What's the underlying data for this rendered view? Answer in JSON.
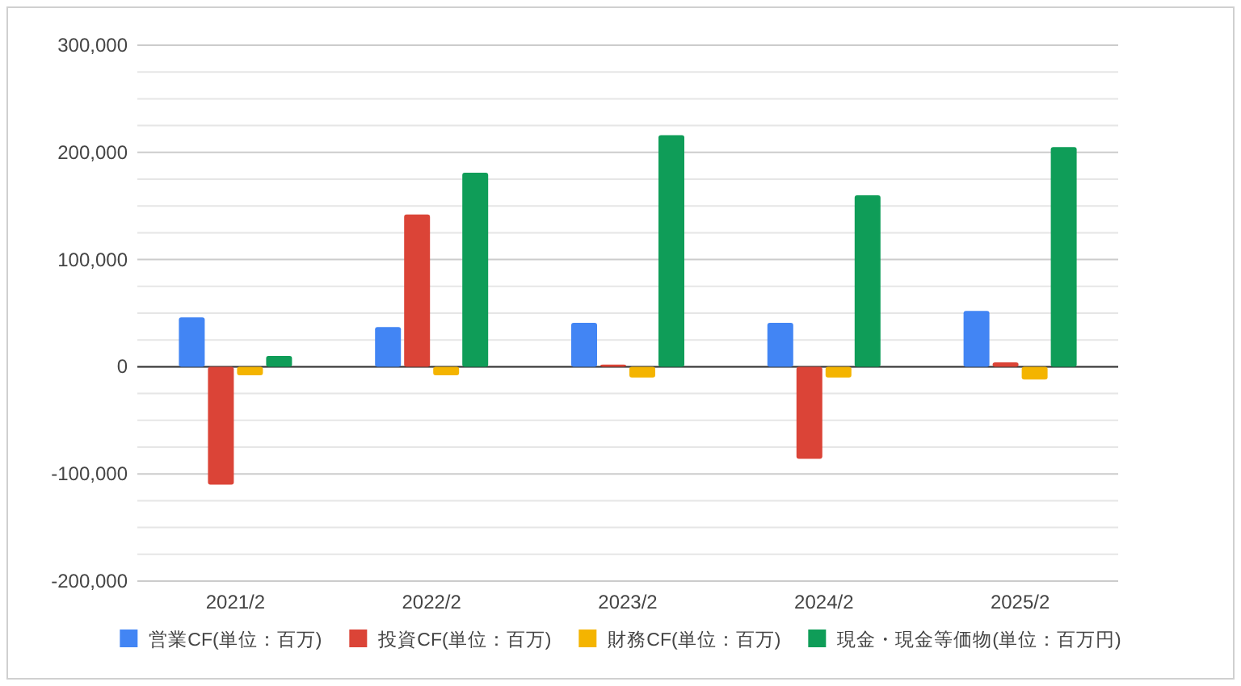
{
  "chart_data": {
    "type": "bar",
    "categories": [
      "2021/2",
      "2022/2",
      "2023/2",
      "2024/2",
      "2025/2"
    ],
    "series": [
      {
        "name": "営業CF(単位：百万)",
        "color": "#4285f4",
        "values": [
          46000,
          37000,
          41000,
          41000,
          52000
        ]
      },
      {
        "name": "投資CF(単位：百万)",
        "color": "#db4437",
        "values": [
          -110000,
          142000,
          2000,
          -86000,
          4000
        ]
      },
      {
        "name": "財務CF(単位：百万)",
        "color": "#f4b400",
        "values": [
          -8000,
          -8000,
          -10000,
          -10000,
          -12000
        ]
      },
      {
        "name": "現金・現金等価物(単位：百万円)",
        "color": "#0f9d58",
        "values": [
          10000,
          181000,
          216000,
          160000,
          205000
        ]
      }
    ],
    "ylim": [
      -200000,
      300000
    ],
    "yticks": [
      {
        "value": -200000,
        "label": "-200,000"
      },
      {
        "value": -175000,
        "label": null
      },
      {
        "value": -150000,
        "label": null
      },
      {
        "value": -125000,
        "label": null
      },
      {
        "value": -100000,
        "label": "-100,000"
      },
      {
        "value": -75000,
        "label": null
      },
      {
        "value": -50000,
        "label": null
      },
      {
        "value": -25000,
        "label": null
      },
      0,
      {
        "value": 25000,
        "label": null
      },
      {
        "value": 50000,
        "label": null
      },
      {
        "value": 75000,
        "label": null
      },
      {
        "value": 100000,
        "label": "100,000"
      },
      {
        "value": 125000,
        "label": null
      },
      {
        "value": 150000,
        "label": null
      },
      {
        "value": 175000,
        "label": null
      },
      {
        "value": 200000,
        "label": "200,000"
      },
      {
        "value": 225000,
        "label": null
      },
      {
        "value": 250000,
        "label": null
      },
      {
        "value": 275000,
        "label": null
      },
      {
        "value": 300000,
        "label": "300,000"
      }
    ],
    "grid": "y",
    "legend": "bottom"
  }
}
